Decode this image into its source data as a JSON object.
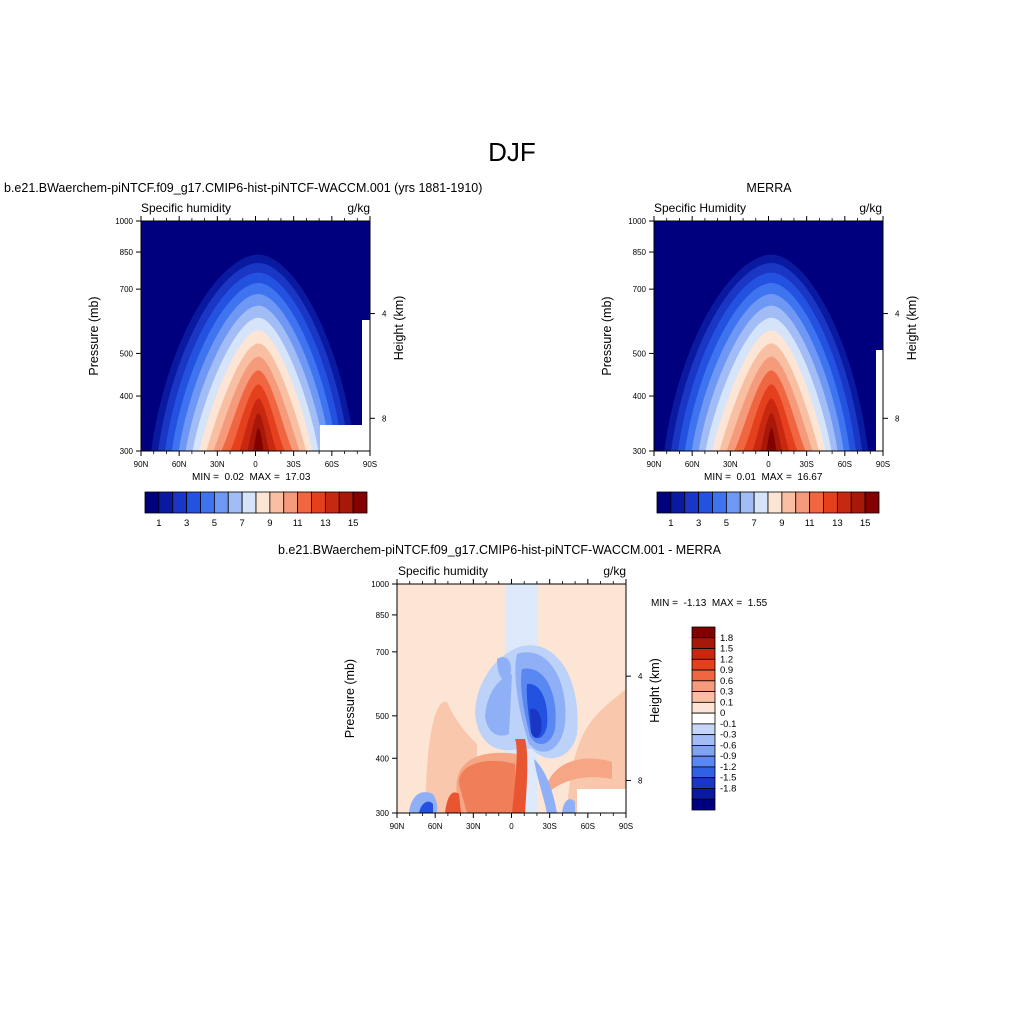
{
  "page": {
    "title": "DJF"
  },
  "colors": {
    "scale": [
      "#00007f",
      "#0a1aa0",
      "#1a36c4",
      "#2452e0",
      "#3e74f0",
      "#6f98f4",
      "#a2bcf6",
      "#d6e4fa",
      "#fde5d5",
      "#f9bfa2",
      "#f69a7c",
      "#f06640",
      "#e4401e",
      "#c82810",
      "#a81808",
      "#820000"
    ]
  },
  "panels": [
    {
      "id": "model",
      "case_title": "b.e21.BWaerchem-piNTCF.f09_g17.CMIP6-hist-piNTCF-WACCM.001 (yrs 1881-1910)",
      "left_label": "Specific humidity",
      "right_label": "g/kg",
      "ylabel": "Pressure (mb)",
      "ylabel_right": "Height (km)",
      "min_label": "MIN =",
      "min_value": "0.02",
      "max_label": "MAX =",
      "max_value": "17.03",
      "colorbar_labels": [
        "1",
        "3",
        "5",
        "7",
        "9",
        "11",
        "13",
        "15"
      ]
    },
    {
      "id": "obs",
      "case_title": "MERRA",
      "left_label": "Specific Humidity",
      "right_label": "g/kg",
      "ylabel": "Pressure (mb)",
      "ylabel_right": "Height (km)",
      "min_label": "MIN =",
      "min_value": "0.01",
      "max_label": "MAX =",
      "max_value": "16.67",
      "colorbar_labels": [
        "1",
        "3",
        "5",
        "7",
        "9",
        "11",
        "13",
        "15"
      ]
    },
    {
      "id": "diff",
      "case_title": "b.e21.BWaerchem-piNTCF.f09_g17.CMIP6-hist-piNTCF-WACCM.001 - MERRA",
      "left_label": "Specific humidity",
      "right_label": "g/kg",
      "ylabel": "Pressure (mb)",
      "ylabel_right": "Height (km)",
      "min_label": "MIN =",
      "min_value": "-1.13",
      "max_label": "MAX =",
      "max_value": "1.55",
      "colorbar_labels": [
        "1.8",
        "1.5",
        "1.2",
        "0.9",
        "0.6",
        "0.3",
        "0.1",
        "0",
        "-0.1",
        "-0.3",
        "-0.6",
        "-0.9",
        "-1.2",
        "-1.5",
        "-1.8"
      ]
    }
  ],
  "chart_data": [
    {
      "type": "heatmap",
      "name": "model",
      "xlabel": "",
      "ylabel": "Pressure (mb)",
      "xticks": [
        "90N",
        "60N",
        "30N",
        "0",
        "30S",
        "60S",
        "90S"
      ],
      "yticks": [
        1000,
        850,
        700,
        500,
        400,
        300
      ],
      "yticks_right": [
        4,
        8
      ],
      "ylim": [
        1000,
        300
      ],
      "log_y": true,
      "levels": [
        1,
        2,
        3,
        4,
        5,
        6,
        7,
        8,
        9,
        10,
        11,
        12,
        13,
        14,
        15
      ],
      "min": 0.02,
      "max": 17.03
    },
    {
      "type": "heatmap",
      "name": "obs",
      "xlabel": "",
      "ylabel": "Pressure (mb)",
      "xticks": [
        "90N",
        "60N",
        "30N",
        "0",
        "30S",
        "60S",
        "90S"
      ],
      "yticks": [
        1000,
        850,
        700,
        500,
        400,
        300
      ],
      "yticks_right": [
        4,
        8
      ],
      "ylim": [
        1000,
        300
      ],
      "log_y": true,
      "levels": [
        1,
        2,
        3,
        4,
        5,
        6,
        7,
        8,
        9,
        10,
        11,
        12,
        13,
        14,
        15
      ],
      "min": 0.01,
      "max": 16.67
    },
    {
      "type": "heatmap",
      "name": "diff",
      "xlabel": "",
      "ylabel": "Pressure (mb)",
      "xticks": [
        "90N",
        "60N",
        "30N",
        "0",
        "30S",
        "60S",
        "90S"
      ],
      "yticks": [
        1000,
        850,
        700,
        500,
        400,
        300
      ],
      "yticks_right": [
        4,
        8
      ],
      "ylim": [
        1000,
        300
      ],
      "log_y": true,
      "levels": [
        -1.8,
        -1.5,
        -1.2,
        -0.9,
        -0.6,
        -0.3,
        -0.1,
        0,
        0.1,
        0.3,
        0.6,
        0.9,
        1.2,
        1.5,
        1.8
      ],
      "min": -1.13,
      "max": 1.55
    }
  ]
}
